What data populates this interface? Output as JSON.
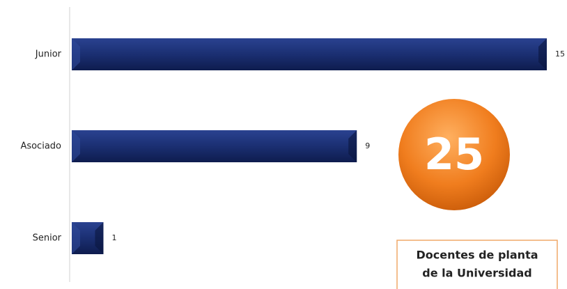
{
  "chart_data": {
    "type": "bar",
    "orientation": "horizontal",
    "categories": [
      "Junior",
      "Asociado",
      "Senior"
    ],
    "values": [
      15,
      9,
      1
    ],
    "color": "#1b2f72",
    "xlim": [
      0,
      15
    ],
    "grid": false,
    "badge": 25,
    "badge_color": "#f07d1e",
    "caption": [
      "Docentes de planta",
      "de la Universidad"
    ],
    "caption_border": "#f0a868"
  }
}
